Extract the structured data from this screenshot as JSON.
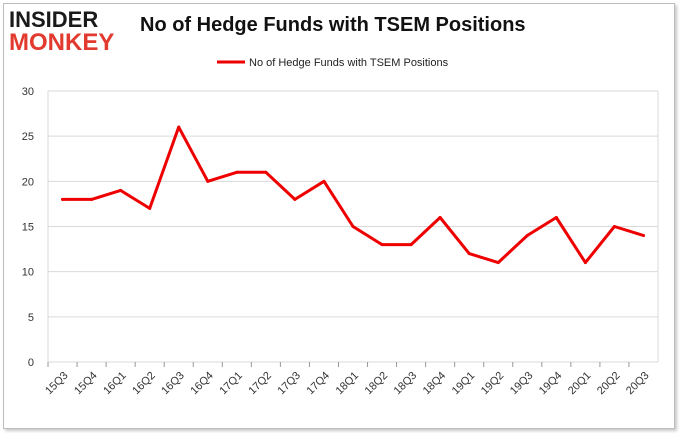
{
  "header": {
    "logo_top": "INSIDER",
    "logo_bottom": "MONKEY",
    "title": "No of Hedge Funds with TSEM Positions"
  },
  "colors": {
    "line": "#ee0000",
    "grid": "#d9d9d9",
    "logo_red": "#e23a2f"
  },
  "chart_data": {
    "type": "line",
    "title": "No of Hedge Funds with TSEM Positions",
    "xlabel": "",
    "ylabel": "",
    "categories": [
      "15Q3",
      "15Q4",
      "16Q1",
      "16Q2",
      "16Q3",
      "16Q4",
      "17Q1",
      "17Q2",
      "17Q3",
      "17Q4",
      "18Q1",
      "18Q2",
      "18Q3",
      "18Q4",
      "19Q1",
      "19Q2",
      "19Q3",
      "19Q4",
      "20Q1",
      "20Q2",
      "20Q3"
    ],
    "series": [
      {
        "name": "No of Hedge Funds with TSEM  Positions",
        "values": [
          18,
          18,
          19,
          17,
          26,
          20,
          21,
          21,
          18,
          20,
          15,
          13,
          13,
          16,
          12,
          11,
          14,
          16,
          11,
          15,
          14
        ]
      }
    ],
    "ylim": [
      0,
      30
    ],
    "yticks": [
      0,
      5,
      10,
      15,
      20,
      25,
      30
    ],
    "grid": true,
    "legend": "top-center"
  }
}
